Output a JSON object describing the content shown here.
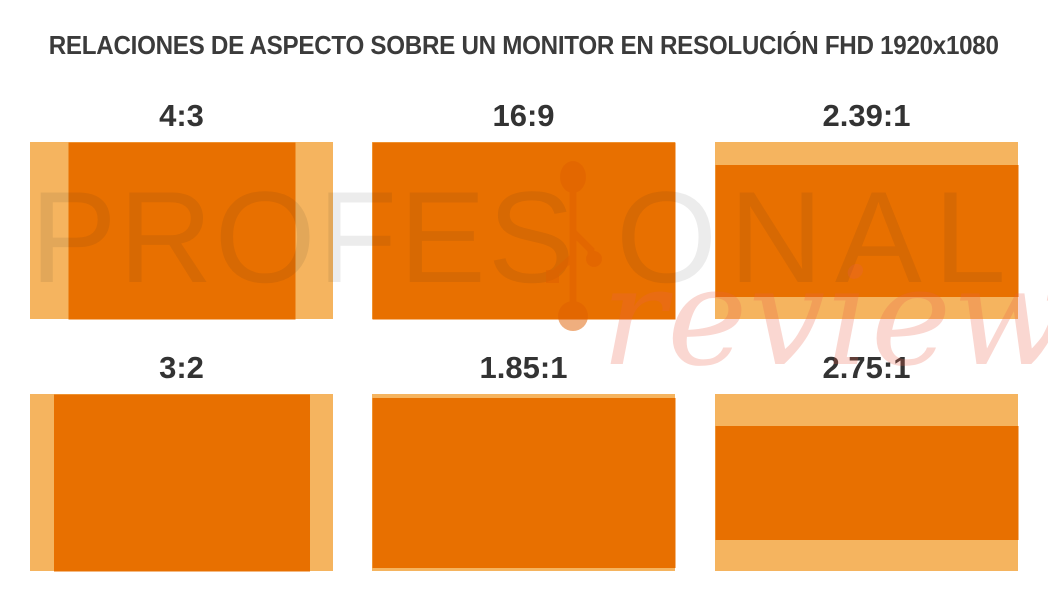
{
  "title": "RELACIONES DE ASPECTO SOBRE UN MONITOR EN RESOLUCIÓN FHD 1920x1080",
  "monitor": {
    "aspect_w": 16,
    "aspect_h": 9
  },
  "panels": [
    {
      "label": "4:3",
      "ratio_w": 4,
      "ratio_h": 3
    },
    {
      "label": "16:9",
      "ratio_w": 16,
      "ratio_h": 9
    },
    {
      "label": "2.39:1",
      "ratio_w": 2.39,
      "ratio_h": 1
    },
    {
      "label": "3:2",
      "ratio_w": 3,
      "ratio_h": 2
    },
    {
      "label": "1.85:1",
      "ratio_w": 1.85,
      "ratio_h": 1
    },
    {
      "label": "2.75:1",
      "ratio_w": 2.75,
      "ratio_h": 1
    }
  ],
  "watermark": {
    "brand_left": "PROFES",
    "brand_right": "ONAL",
    "brand_script": "review",
    "logo_icon": "branch-circuit-icon"
  },
  "colors": {
    "monitor_screen": "#F5B45F",
    "content_area": "#E87000",
    "heading_text": "#3B3B3B",
    "watermark_gray": "rgba(40,40,40,0.085)",
    "watermark_pink": "rgba(235,95,70,0.25)",
    "logo_orange": "#E06000"
  }
}
